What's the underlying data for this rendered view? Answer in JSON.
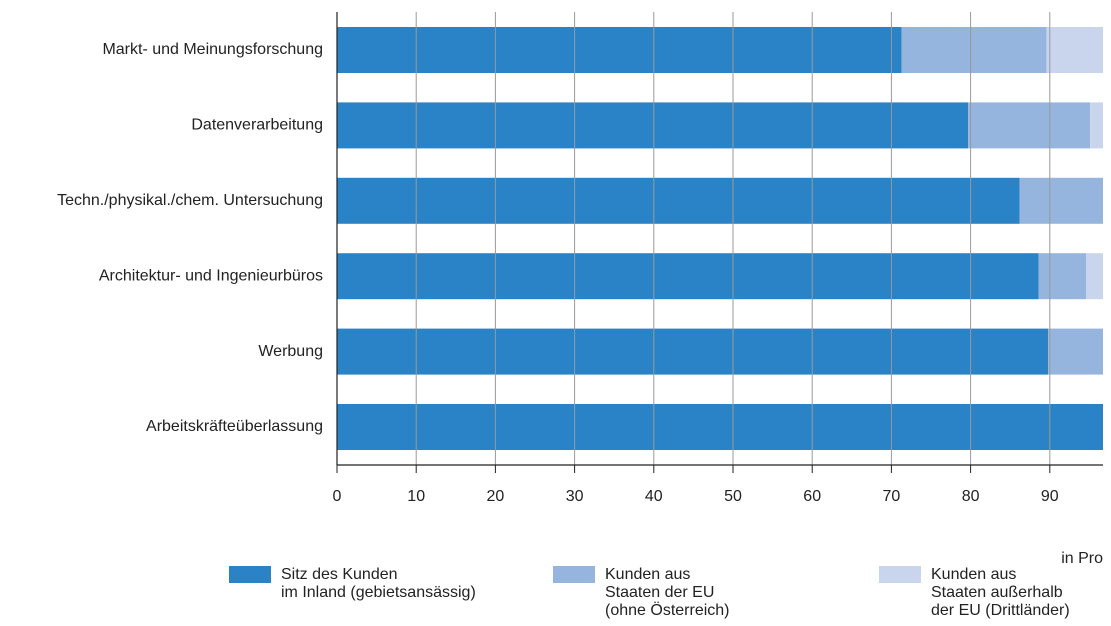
{
  "chart_data": {
    "type": "stacked_barh",
    "categories": [
      "Markt- und Meinungsforschung",
      "Datenverarbeitung",
      "Techn./physikal./chem. Untersuchung",
      "Architektur- und Ingenieurbüros",
      "Werbung",
      "Arbeitskräfteüberlassung"
    ],
    "series": [
      {
        "name": "Sitz des Kunden\nim Inland (gebietsansässig)",
        "color": "#2a83c6",
        "values": [
          71.3,
          79.7,
          86.2,
          88.6,
          89.8,
          98
        ]
      },
      {
        "name": "Kunden aus\nStaaten der EU\n(ohne Österreich)",
        "color": "#96b5de",
        "values": [
          18.3,
          15.4,
          12.5,
          6.0,
          9.0,
          1.5
        ]
      },
      {
        "name": "Kunden aus\nStaaten außerhalb\nder EU (Drittländer)",
        "color": "#c8d5ed",
        "values": [
          10.4,
          4.9,
          1.3,
          5.4,
          1.2,
          0.5
        ]
      }
    ],
    "xlim": [
      0,
      100
    ],
    "xticks": [
      0,
      10,
      20,
      30,
      40,
      50,
      60,
      70,
      80,
      90
    ],
    "xlabel": "in Pro",
    "grid": true
  }
}
